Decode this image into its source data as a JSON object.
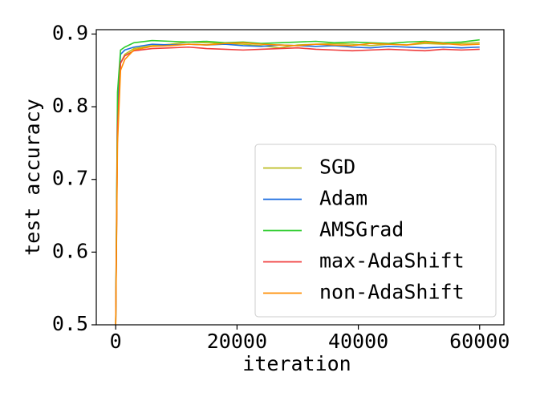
{
  "chart_data": {
    "type": "line",
    "x_label": "iteration",
    "y_label": "test accuracy",
    "x": [
      0,
      300,
      800,
      1500,
      3000,
      6000,
      9000,
      12000,
      15000,
      18000,
      21000,
      24000,
      27000,
      30000,
      33000,
      36000,
      39000,
      42000,
      45000,
      48000,
      51000,
      54000,
      57000,
      60000
    ],
    "series": [
      {
        "name": "SGD",
        "color": "#bcbd22",
        "values": [
          0.5,
          0.78,
          0.86,
          0.872,
          0.88,
          0.884,
          0.886,
          0.889,
          0.888,
          0.887,
          0.886,
          0.884,
          0.881,
          0.885,
          0.886,
          0.887,
          0.886,
          0.884,
          0.886,
          0.885,
          0.887,
          0.886,
          0.887,
          0.888
        ]
      },
      {
        "name": "Adam",
        "color": "#1f6fe0",
        "values": [
          0.5,
          0.8,
          0.872,
          0.878,
          0.882,
          0.886,
          0.885,
          0.886,
          0.885,
          0.886,
          0.884,
          0.883,
          0.885,
          0.884,
          0.883,
          0.884,
          0.882,
          0.881,
          0.883,
          0.882,
          0.881,
          0.882,
          0.881,
          0.882
        ]
      },
      {
        "name": "AMSGrad",
        "color": "#2ecc2e",
        "values": [
          0.5,
          0.82,
          0.878,
          0.882,
          0.888,
          0.891,
          0.89,
          0.889,
          0.89,
          0.888,
          0.889,
          0.887,
          0.888,
          0.889,
          0.89,
          0.888,
          0.889,
          0.888,
          0.887,
          0.889,
          0.89,
          0.888,
          0.889,
          0.892
        ]
      },
      {
        "name": "max-AdaShift",
        "color": "#f03c3c",
        "values": [
          0.5,
          0.77,
          0.86,
          0.87,
          0.877,
          0.88,
          0.881,
          0.882,
          0.88,
          0.879,
          0.878,
          0.879,
          0.88,
          0.881,
          0.879,
          0.878,
          0.877,
          0.878,
          0.879,
          0.878,
          0.877,
          0.879,
          0.878,
          0.879
        ]
      },
      {
        "name": "non-AdaShift",
        "color": "#ff8c00",
        "values": [
          0.5,
          0.75,
          0.85,
          0.865,
          0.878,
          0.883,
          0.884,
          0.886,
          0.885,
          0.887,
          0.888,
          0.886,
          0.885,
          0.884,
          0.886,
          0.885,
          0.884,
          0.887,
          0.886,
          0.885,
          0.889,
          0.887,
          0.885,
          0.886
        ]
      }
    ],
    "xlim": [
      -3200,
      64000
    ],
    "ylim": [
      0.5,
      0.906
    ],
    "xticks": [
      0,
      20000,
      40000,
      60000
    ],
    "yticks": [
      0.5,
      0.6,
      0.7,
      0.8,
      0.9
    ],
    "legend": "lower right"
  }
}
